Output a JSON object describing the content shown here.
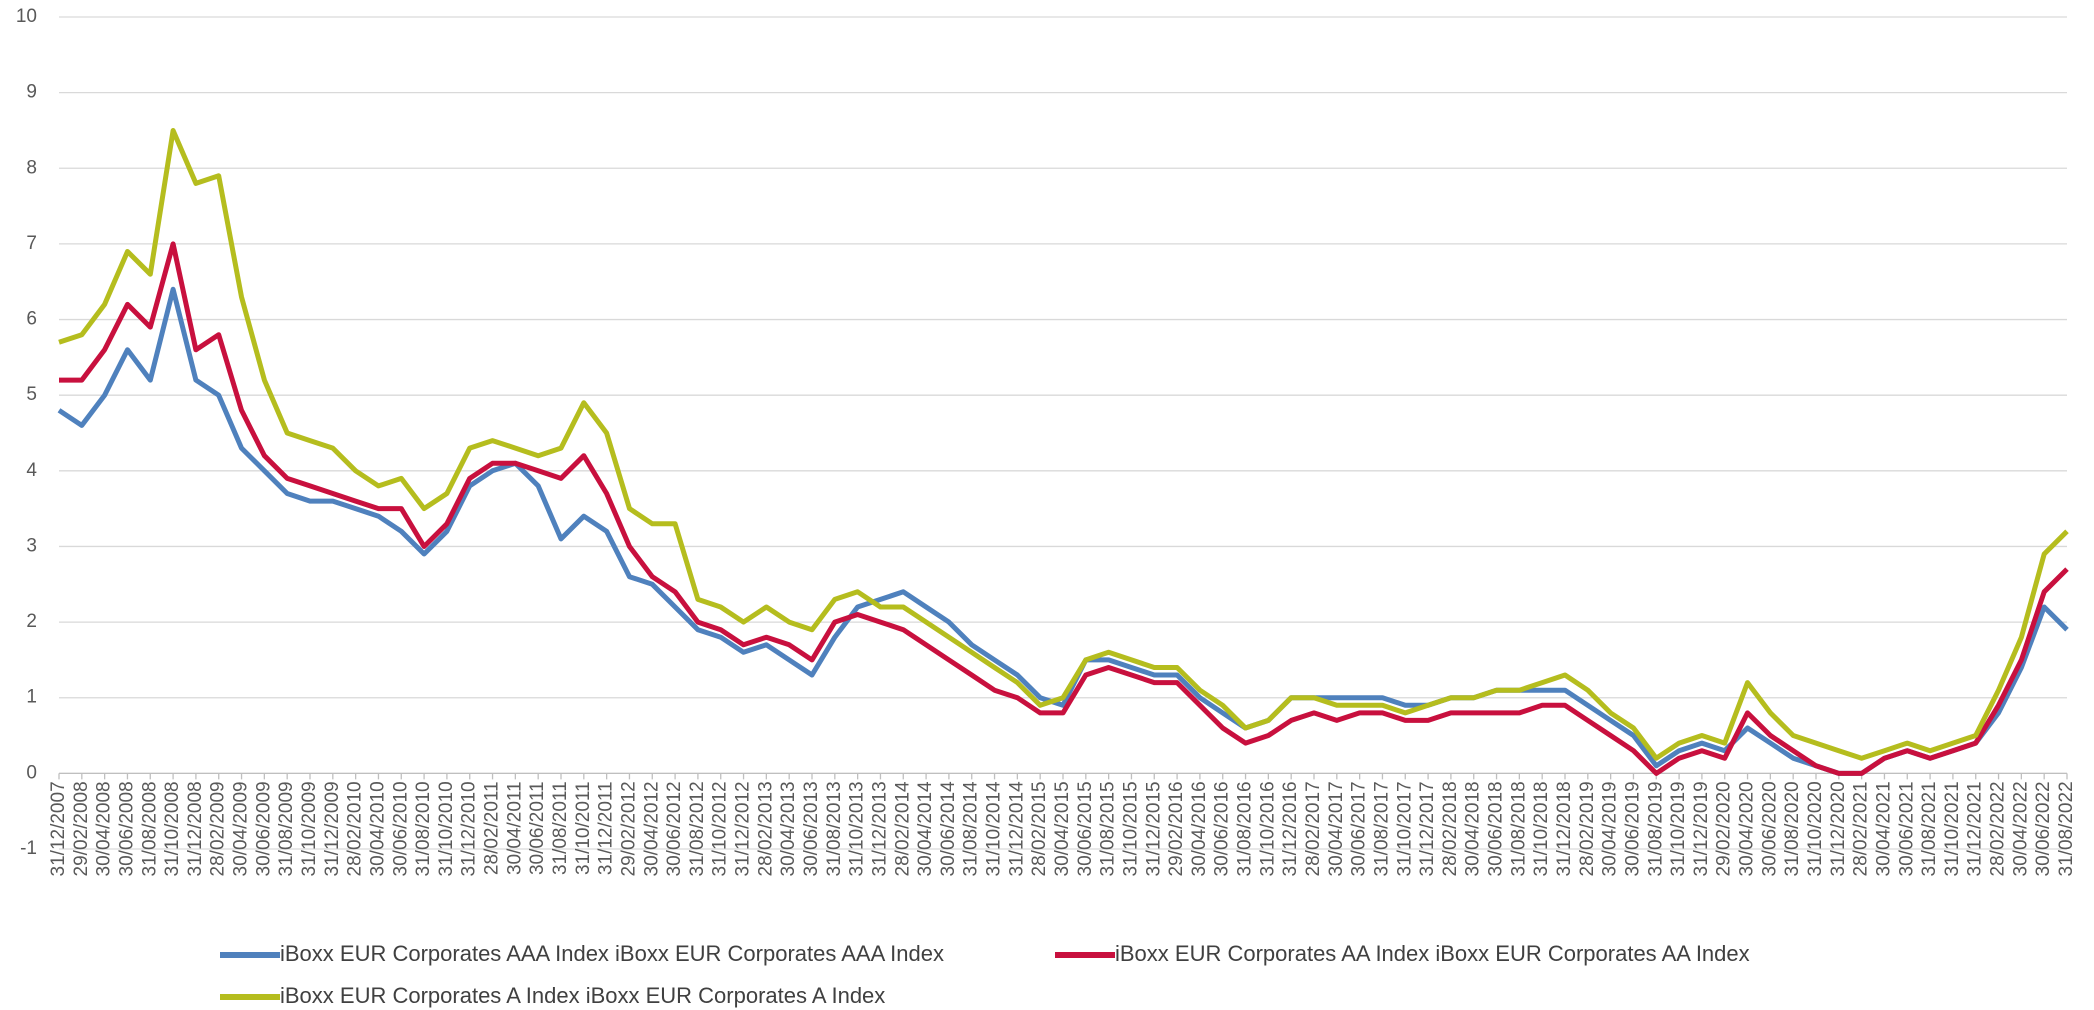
{
  "chart_data": {
    "type": "line",
    "categories": [
      "31/12/2007",
      "29/02/2008",
      "30/04/2008",
      "30/06/2008",
      "31/08/2008",
      "31/10/2008",
      "31/12/2008",
      "28/02/2009",
      "30/04/2009",
      "30/06/2009",
      "31/08/2009",
      "31/10/2009",
      "31/12/2009",
      "28/02/2010",
      "30/04/2010",
      "30/06/2010",
      "31/08/2010",
      "31/10/2010",
      "31/12/2010",
      "28/02/2011",
      "30/04/2011",
      "30/06/2011",
      "31/08/2011",
      "31/10/2011",
      "31/12/2011",
      "29/02/2012",
      "30/04/2012",
      "30/06/2012",
      "31/08/2012",
      "31/10/2012",
      "31/12/2012",
      "28/02/2013",
      "30/04/2013",
      "30/06/2013",
      "31/08/2013",
      "31/10/2013",
      "31/12/2013",
      "28/02/2014",
      "30/04/2014",
      "30/06/2014",
      "31/08/2014",
      "31/10/2014",
      "31/12/2014",
      "28/02/2015",
      "30/04/2015",
      "30/06/2015",
      "31/08/2015",
      "31/10/2015",
      "31/12/2015",
      "29/02/2016",
      "30/04/2016",
      "30/06/2016",
      "31/08/2016",
      "31/10/2016",
      "31/12/2016",
      "28/02/2017",
      "30/04/2017",
      "30/06/2017",
      "31/08/2017",
      "31/10/2017",
      "31/12/2017",
      "28/02/2018",
      "30/04/2018",
      "30/06/2018",
      "31/08/2018",
      "31/10/2018",
      "31/12/2018",
      "28/02/2019",
      "30/04/2019",
      "30/06/2019",
      "31/08/2019",
      "31/10/2019",
      "31/12/2019",
      "29/02/2020",
      "30/04/2020",
      "30/06/2020",
      "31/08/2020",
      "31/10/2020",
      "31/12/2020",
      "28/02/2021",
      "30/04/2021",
      "30/06/2021",
      "31/08/2021",
      "31/10/2021",
      "31/12/2021",
      "28/02/2022",
      "30/04/2022",
      "30/06/2022",
      "31/08/2022"
    ],
    "series": [
      {
        "name": "iBoxx EUR Corporates AAA Index iBoxx EUR Corporates AAA Index",
        "color": "#4f81bd",
        "values": [
          4.8,
          4.6,
          5.0,
          5.6,
          5.2,
          6.4,
          5.2,
          5.0,
          4.3,
          4.0,
          3.7,
          3.6,
          3.6,
          3.5,
          3.4,
          3.2,
          2.9,
          3.2,
          3.8,
          4.0,
          4.1,
          3.8,
          3.1,
          3.4,
          3.2,
          2.6,
          2.5,
          2.2,
          1.9,
          1.8,
          1.6,
          1.7,
          1.5,
          1.3,
          1.8,
          2.2,
          2.3,
          2.4,
          2.2,
          2.0,
          1.7,
          1.5,
          1.3,
          1.0,
          0.9,
          1.5,
          1.5,
          1.4,
          1.3,
          1.3,
          1.0,
          0.8,
          0.6,
          0.7,
          1.0,
          1.0,
          1.0,
          1.0,
          1.0,
          0.9,
          0.9,
          1.0,
          1.0,
          1.1,
          1.1,
          1.1,
          1.1,
          0.9,
          0.7,
          0.5,
          0.1,
          0.3,
          0.4,
          0.3,
          0.6,
          0.4,
          0.2,
          0.1,
          0.0,
          0.0,
          0.2,
          0.3,
          0.2,
          0.3,
          0.4,
          0.8,
          1.4,
          2.2,
          1.9
        ]
      },
      {
        "name": "iBoxx EUR Corporates AA Index iBoxx EUR Corporates AA Index",
        "color": "#c8103e",
        "values": [
          5.2,
          5.2,
          5.6,
          6.2,
          5.9,
          7.0,
          5.6,
          5.8,
          4.8,
          4.2,
          3.9,
          3.8,
          3.7,
          3.6,
          3.5,
          3.5,
          3.0,
          3.3,
          3.9,
          4.1,
          4.1,
          4.0,
          3.9,
          4.2,
          3.7,
          3.0,
          2.6,
          2.4,
          2.0,
          1.9,
          1.7,
          1.8,
          1.7,
          1.5,
          2.0,
          2.1,
          2.0,
          1.9,
          1.7,
          1.5,
          1.3,
          1.1,
          1.0,
          0.8,
          0.8,
          1.3,
          1.4,
          1.3,
          1.2,
          1.2,
          0.9,
          0.6,
          0.4,
          0.5,
          0.7,
          0.8,
          0.7,
          0.8,
          0.8,
          0.7,
          0.7,
          0.8,
          0.8,
          0.8,
          0.8,
          0.9,
          0.9,
          0.7,
          0.5,
          0.3,
          0.0,
          0.2,
          0.3,
          0.2,
          0.8,
          0.5,
          0.3,
          0.1,
          0.0,
          0.0,
          0.2,
          0.3,
          0.2,
          0.3,
          0.4,
          0.9,
          1.5,
          2.4,
          2.7
        ]
      },
      {
        "name": "iBoxx EUR Corporates A Index iBoxx EUR Corporates A Index",
        "color": "#b5bd1e",
        "values": [
          5.7,
          5.8,
          6.2,
          6.9,
          6.6,
          8.5,
          7.8,
          7.9,
          6.3,
          5.2,
          4.5,
          4.4,
          4.3,
          4.0,
          3.8,
          3.9,
          3.5,
          3.7,
          4.3,
          4.4,
          4.3,
          4.2,
          4.3,
          4.9,
          4.5,
          3.5,
          3.3,
          3.3,
          2.3,
          2.2,
          2.0,
          2.2,
          2.0,
          1.9,
          2.3,
          2.4,
          2.2,
          2.2,
          2.0,
          1.8,
          1.6,
          1.4,
          1.2,
          0.9,
          1.0,
          1.5,
          1.6,
          1.5,
          1.4,
          1.4,
          1.1,
          0.9,
          0.6,
          0.7,
          1.0,
          1.0,
          0.9,
          0.9,
          0.9,
          0.8,
          0.9,
          1.0,
          1.0,
          1.1,
          1.1,
          1.2,
          1.3,
          1.1,
          0.8,
          0.6,
          0.2,
          0.4,
          0.5,
          0.4,
          1.2,
          0.8,
          0.5,
          0.4,
          0.3,
          0.2,
          0.3,
          0.4,
          0.3,
          0.4,
          0.5,
          1.1,
          1.8,
          2.9,
          3.2
        ]
      }
    ],
    "ylim": [
      -1,
      10
    ],
    "yticks": [
      -1,
      0,
      1,
      2,
      3,
      4,
      5,
      6,
      7,
      8,
      9,
      10
    ],
    "grid": true,
    "legend": "bottom"
  }
}
